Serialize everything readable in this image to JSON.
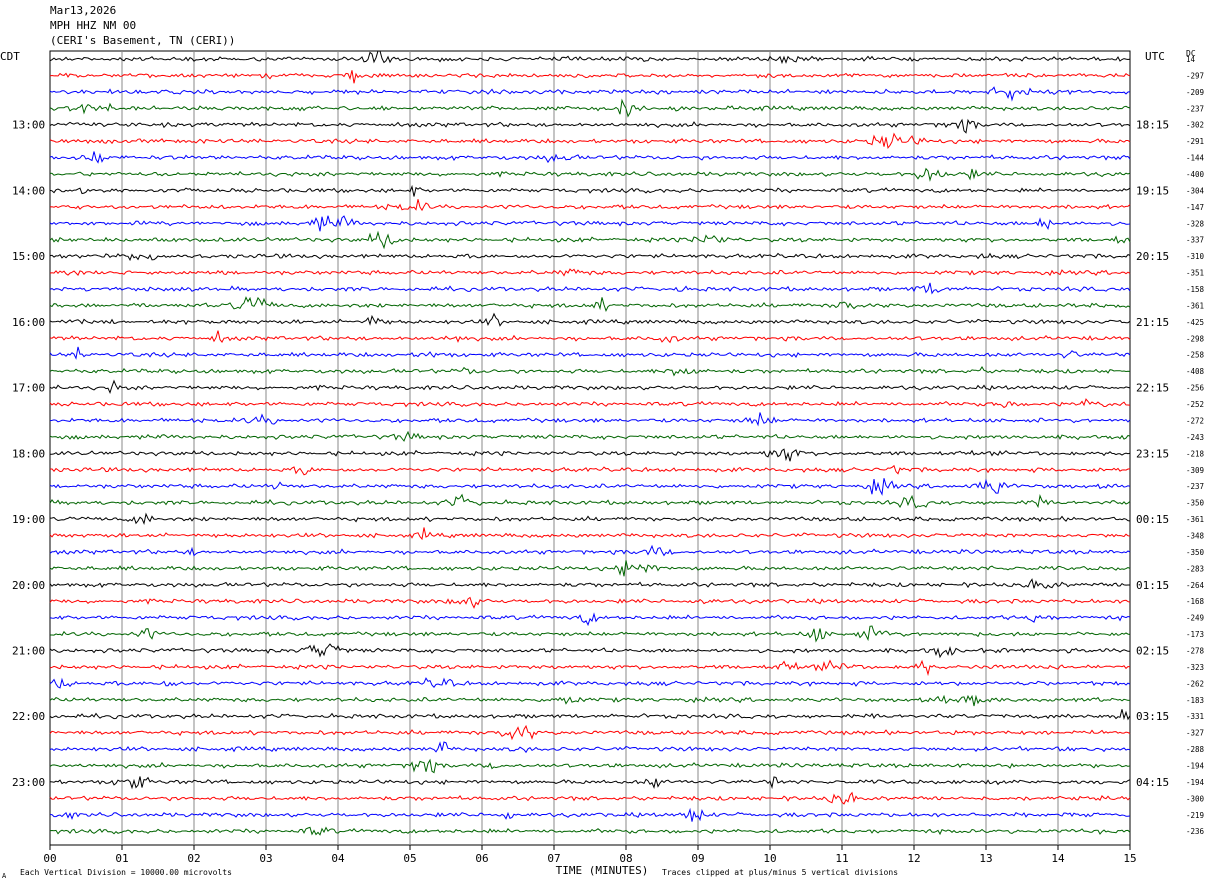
{
  "header": {
    "date": "Mar13,2026",
    "station": "MPH HHZ NM 00",
    "location": "(CERI's Basement, TN (CERI))"
  },
  "left_zone_label": "CDT",
  "right_zone_label": "UTC",
  "dc_label": "DC",
  "footer": {
    "vertical_division_note": "Each Vertical Division = 10000.00 microvolts",
    "clip_note": "Traces clipped at plus/minus 5 vertical divisions",
    "corner_mark": "A"
  },
  "chart_data": {
    "type": "line",
    "title": "",
    "xlabel": "TIME (MINUTES)",
    "ylabel": "",
    "xlim": [
      0,
      15
    ],
    "x_ticks": [
      "00",
      "01",
      "02",
      "03",
      "04",
      "05",
      "06",
      "07",
      "08",
      "09",
      "10",
      "11",
      "12",
      "13",
      "14",
      "15"
    ],
    "grid": "vertical lines every minute",
    "trace_colors": [
      "#000000",
      "#ff0000",
      "#0000ff",
      "#006400"
    ],
    "trace_count": 48,
    "left_hour_labels": [
      "13:00",
      "14:00",
      "15:00",
      "16:00",
      "17:00",
      "18:00",
      "19:00",
      "20:00",
      "21:00",
      "22:00",
      "23:00"
    ],
    "right_hour_labels": [
      "18:15",
      "19:15",
      "20:15",
      "21:15",
      "22:15",
      "23:15",
      "00:15",
      "01:15",
      "02:15",
      "03:15",
      "04:15"
    ],
    "dc_offsets": [
      "14",
      "-297",
      "-209",
      "-237",
      "-302",
      "-291",
      "-144",
      "-400",
      "-304",
      "-147",
      "-328",
      "-337",
      "-310",
      "-351",
      "-158",
      "-361",
      "-425",
      "-298",
      "-258",
      "-408",
      "-256",
      "-252",
      "-272",
      "-243",
      "-218",
      "-309",
      "-237",
      "-350",
      "-361",
      "-348",
      "-350",
      "-283",
      "-264",
      "-168",
      "-249",
      "-173",
      "-278",
      "-323",
      "-262",
      "-183",
      "-331",
      "-327",
      "-288",
      "-194",
      "-194",
      "-300",
      "-219",
      "-236"
    ]
  }
}
